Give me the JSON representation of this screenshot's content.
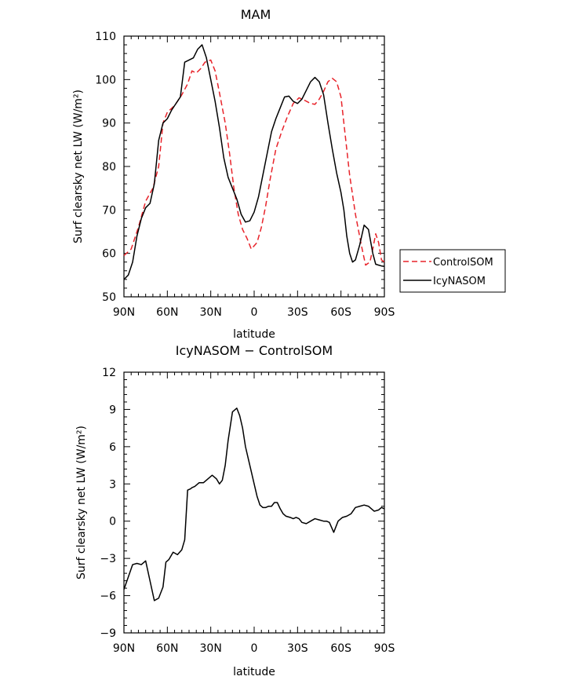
{
  "chart_data": [
    {
      "type": "line",
      "title": "MAM",
      "xlabel": "latitude",
      "ylabel": "Surf clearsky net LW (W/m²)",
      "xlim": [
        90,
        -90
      ],
      "ylim": [
        50,
        110
      ],
      "x_ticks": [
        90,
        60,
        30,
        0,
        -30,
        -60,
        -90
      ],
      "x_tick_labels": [
        "90N",
        "60N",
        "30N",
        "0",
        "30S",
        "60S",
        "90S"
      ],
      "y_ticks": [
        50,
        60,
        70,
        80,
        90,
        100,
        110
      ],
      "y_tick_labels": [
        "50",
        "60",
        "70",
        "80",
        "90",
        "100",
        "110"
      ],
      "legend_position": "right",
      "series": [
        {
          "name": "ControlSOM",
          "color": "#e8232a",
          "dash": "dashed",
          "x": [
            90,
            85,
            80,
            75,
            70,
            66,
            63,
            60,
            55,
            50,
            46,
            43,
            40,
            37,
            34,
            30,
            27,
            24,
            20,
            17,
            14,
            11,
            8,
            5,
            2,
            -2,
            -5,
            -8,
            -11,
            -15,
            -19,
            -23,
            -27,
            -31,
            -35,
            -39,
            -42,
            -45,
            -48,
            -51,
            -54,
            -57,
            -60,
            -62,
            -64,
            -66,
            -70,
            -74,
            -77,
            -80,
            -82,
            -84,
            -86,
            -88,
            -90
          ],
          "y": [
            59.5,
            61,
            66,
            72,
            75,
            80,
            90,
            92.5,
            94,
            96.5,
            99,
            102,
            101.5,
            102.5,
            104,
            104.5,
            102,
            97,
            90,
            83,
            75,
            69,
            65.5,
            63.5,
            61,
            62.5,
            66,
            71,
            77,
            84,
            88,
            91.5,
            94.5,
            95.8,
            95.2,
            94.5,
            94.3,
            95.5,
            97.3,
            99.5,
            100.3,
            99.5,
            96,
            90,
            84,
            78,
            69,
            62,
            57.3,
            58,
            61,
            64.5,
            62.5,
            58.5,
            58
          ]
        },
        {
          "name": "IcyNASOM",
          "color": "#000000",
          "dash": "solid",
          "x": [
            90,
            87,
            84,
            81,
            78,
            75,
            72,
            69,
            66,
            63,
            60,
            57,
            54,
            51,
            48,
            45,
            42,
            39,
            36,
            33,
            30,
            27,
            24,
            21,
            18,
            15,
            12,
            9,
            6,
            3,
            0,
            -3,
            -6,
            -9,
            -12,
            -15,
            -18,
            -21,
            -24,
            -27,
            -30,
            -33,
            -36,
            -39,
            -42,
            -45,
            -48,
            -51,
            -54,
            -57,
            -60,
            -62,
            -64,
            -66,
            -68,
            -70,
            -73,
            -76,
            -79,
            -82,
            -84,
            -86,
            -88,
            -90
          ],
          "y": [
            54,
            55,
            58,
            64,
            68,
            70.5,
            71.5,
            76,
            86,
            90,
            91,
            93,
            94.5,
            96,
            104,
            104.5,
            105,
            107,
            108,
            105,
            100,
            95,
            89,
            82,
            77.5,
            75,
            72.5,
            69,
            67.2,
            67.5,
            69.5,
            73,
            78,
            83,
            88,
            91,
            93.5,
            96,
            96.2,
            95,
            94.5,
            95.5,
            97.5,
            99.5,
            100.5,
            99.5,
            96.5,
            90,
            84,
            78.5,
            74,
            70,
            64,
            60,
            58,
            58.5,
            62,
            66.5,
            65.5,
            60,
            57.5,
            57.3,
            57.1,
            57
          ]
        }
      ]
    },
    {
      "type": "line",
      "title": "IcyNASOM − ControlSOM",
      "xlabel": "latitude",
      "ylabel": "Surf clearsky net LW (W/m²)",
      "xlim": [
        90,
        -90
      ],
      "ylim": [
        -9,
        12
      ],
      "x_ticks": [
        90,
        60,
        30,
        0,
        -30,
        -60,
        -90
      ],
      "x_tick_labels": [
        "90N",
        "60N",
        "30N",
        "0",
        "30S",
        "60S",
        "90S"
      ],
      "y_ticks": [
        -9,
        -6,
        -3,
        0,
        3,
        6,
        9,
        12
      ],
      "y_tick_labels": [
        "−9",
        "−6",
        "−3",
        "0",
        "3",
        "6",
        "9",
        "12"
      ],
      "grid": false,
      "series": [
        {
          "name": "",
          "color": "#000000",
          "dash": "solid",
          "x": [
            90,
            87,
            84,
            81,
            78,
            75,
            72,
            69,
            66,
            63,
            61,
            59,
            56,
            53,
            50,
            48,
            46,
            44,
            43,
            41,
            38,
            35,
            32,
            29,
            26,
            24,
            22,
            20,
            18,
            15,
            12,
            10,
            8,
            6,
            4,
            2,
            0,
            -2,
            -4,
            -6,
            -8,
            -10,
            -12,
            -14,
            -16,
            -18,
            -20,
            -22,
            -25,
            -27,
            -29,
            -31,
            -33,
            -36,
            -39,
            -42,
            -45,
            -48,
            -50,
            -52,
            -55,
            -58,
            -61,
            -64,
            -67,
            -70,
            -73,
            -76,
            -79,
            -81,
            -83,
            -86,
            -88,
            -90
          ],
          "y": [
            -5.5,
            -4.5,
            -3.5,
            -3.4,
            -3.5,
            -3.2,
            -4.8,
            -6.4,
            -6.2,
            -5.3,
            -3.3,
            -3.1,
            -2.5,
            -2.7,
            -2.3,
            -1.5,
            2.5,
            2.6,
            2.7,
            2.8,
            3.1,
            3.1,
            3.4,
            3.7,
            3.4,
            3.0,
            3.3,
            4.5,
            6.5,
            8.8,
            9.1,
            8.5,
            7.5,
            6.0,
            5.0,
            4.0,
            3.0,
            2.0,
            1.3,
            1.1,
            1.1,
            1.2,
            1.2,
            1.5,
            1.5,
            1.0,
            0.6,
            0.4,
            0.3,
            0.2,
            0.3,
            0.2,
            -0.1,
            -0.2,
            0.0,
            0.2,
            0.1,
            0.0,
            0.0,
            -0.1,
            -0.9,
            0.0,
            0.3,
            0.4,
            0.6,
            1.1,
            1.2,
            1.3,
            1.2,
            1.0,
            0.8,
            0.9,
            1.1,
            1.0
          ]
        }
      ]
    }
  ]
}
